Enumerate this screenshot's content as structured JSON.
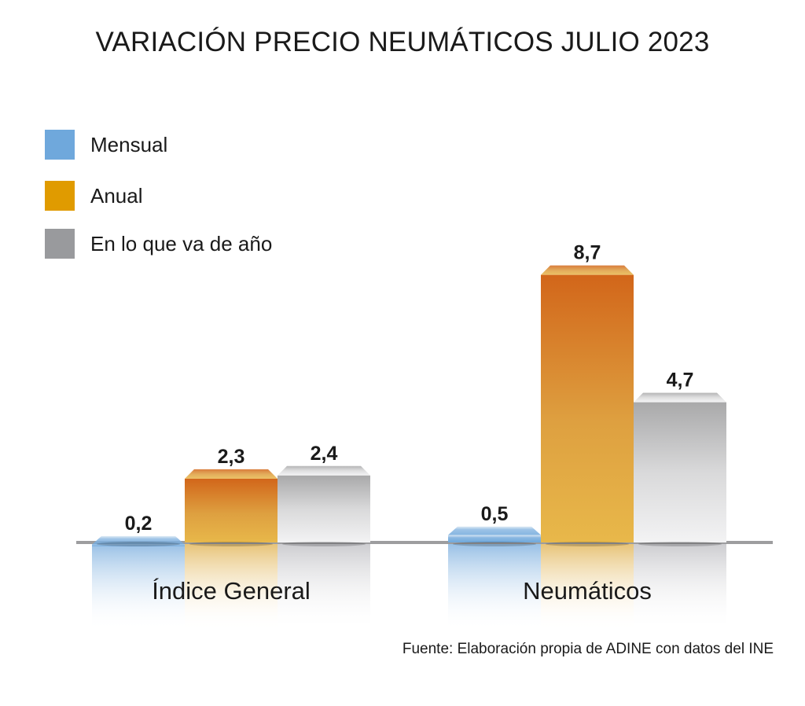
{
  "chart_data": {
    "type": "bar",
    "title": "VARIACIÓN PRECIO NEUMÁTICOS JULIO 2023",
    "categories": [
      "Índice General",
      "Neumáticos"
    ],
    "series": [
      {
        "name": "Mensual",
        "values": [
          0.2,
          0.5
        ],
        "labels": [
          "0,2",
          "0,5"
        ],
        "color": "#6fa8dc"
      },
      {
        "name": "Anual",
        "values": [
          2.3,
          8.7
        ],
        "labels": [
          "2,3",
          "8,7"
        ],
        "color": "#e09b00"
      },
      {
        "name": "En lo que va de año",
        "values": [
          2.4,
          4.7
        ],
        "labels": [
          "2,4",
          "4,7"
        ],
        "color": "#999999"
      }
    ],
    "xlabel": "",
    "ylabel": "",
    "ylim": [
      0,
      9
    ],
    "grid": false,
    "legend_position": "top-left",
    "source": "Fuente: Elaboración propia de ADINE con datos del INE"
  }
}
